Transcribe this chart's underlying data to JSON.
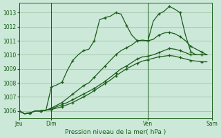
{
  "bg_color": "#cce8d8",
  "grid_color": "#99bb99",
  "line_color": "#1a5c1a",
  "marker_color": "#1a5c1a",
  "xlabel": "Pression niveau de la mer( hPa )",
  "ylim": [
    1005.5,
    1013.7
  ],
  "yticks": [
    1006,
    1007,
    1008,
    1009,
    1010,
    1011,
    1012,
    1013
  ],
  "xtick_labels": [
    "Jeu",
    "Dim",
    "Ven",
    "Sam"
  ],
  "xtick_positions": [
    0,
    6,
    24,
    36
  ],
  "vline_positions": [
    0,
    6,
    24,
    36
  ],
  "total_points": 48,
  "series": [
    [
      1006.0,
      1005.8,
      1005.85,
      1006.0,
      1006.0,
      1006.05,
      1007.7,
      1007.85,
      1008.05,
      1008.9,
      1009.6,
      1010.0,
      1010.3,
      1010.4,
      1011.0,
      1012.5,
      1012.65,
      1012.75,
      1013.0,
      1012.9,
      1012.1,
      1011.4,
      1011.0,
      1011.0,
      1011.0,
      1012.4,
      1012.9,
      1013.1,
      1013.45,
      1013.25,
      1013.0,
      1011.4,
      1010.2,
      1010.0,
      1010.0,
      1010.0
    ],
    [
      1006.0,
      1005.8,
      1005.85,
      1006.0,
      1006.0,
      1006.05,
      1006.2,
      1006.4,
      1006.6,
      1006.9,
      1007.2,
      1007.5,
      1007.8,
      1008.0,
      1008.4,
      1008.8,
      1009.2,
      1009.6,
      1010.0,
      1010.3,
      1010.5,
      1010.7,
      1011.0,
      1011.05,
      1011.0,
      1011.1,
      1011.4,
      1011.55,
      1011.6,
      1011.5,
      1011.3,
      1011.0,
      1010.6,
      1010.4,
      1010.2,
      1010.0
    ],
    [
      1006.0,
      1005.8,
      1005.85,
      1006.0,
      1006.0,
      1006.05,
      1006.15,
      1006.3,
      1006.45,
      1006.6,
      1006.8,
      1007.0,
      1007.2,
      1007.4,
      1007.6,
      1007.85,
      1008.1,
      1008.4,
      1008.7,
      1009.0,
      1009.2,
      1009.45,
      1009.7,
      1009.85,
      1009.9,
      1010.0,
      1010.15,
      1010.3,
      1010.45,
      1010.4,
      1010.3,
      1010.15,
      1010.0,
      1010.0,
      1010.0,
      1010.0
    ],
    [
      1006.0,
      1005.8,
      1005.85,
      1006.0,
      1006.0,
      1006.05,
      1006.1,
      1006.2,
      1006.3,
      1006.45,
      1006.6,
      1006.8,
      1007.0,
      1007.2,
      1007.45,
      1007.7,
      1007.95,
      1008.2,
      1008.5,
      1008.75,
      1009.0,
      1009.2,
      1009.4,
      1009.55,
      1009.65,
      1009.75,
      1009.85,
      1009.9,
      1009.95,
      1009.9,
      1009.8,
      1009.7,
      1009.6,
      1009.55,
      1009.5,
      1009.5
    ]
  ],
  "marker_step": 2
}
